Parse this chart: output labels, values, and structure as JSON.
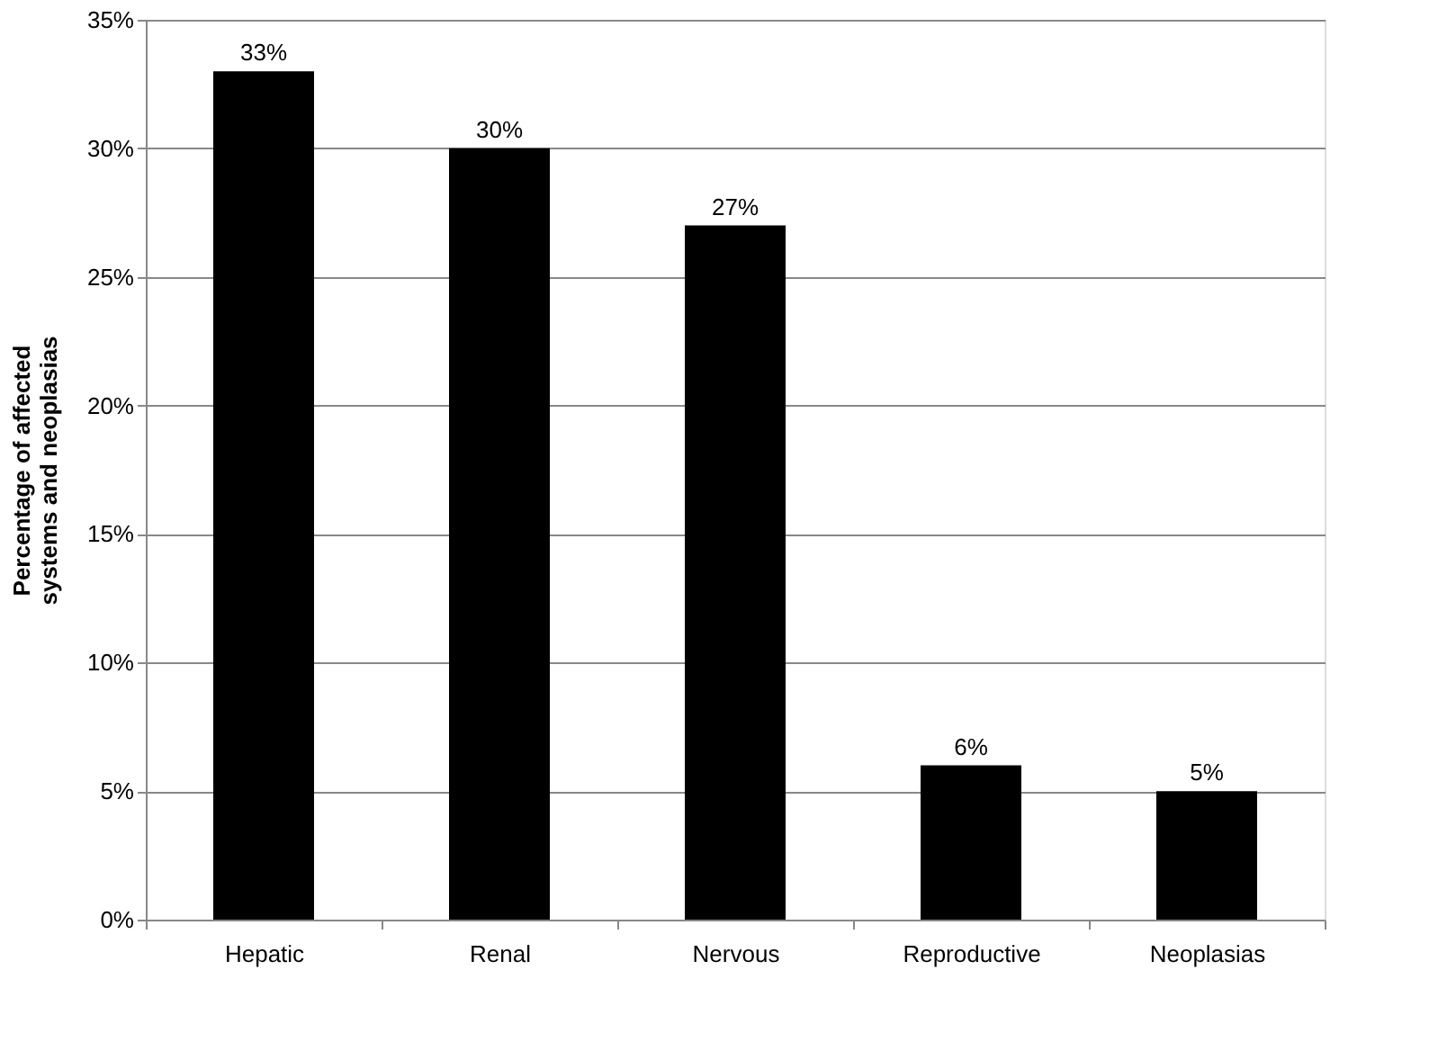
{
  "chart_data": {
    "type": "bar",
    "ylabel": "Percentage of affected systems and neoplasias",
    "categories": [
      "Hepatic",
      "Renal",
      "Nervous",
      "Reproductive",
      "Neoplasias"
    ],
    "values": [
      33,
      30,
      27,
      6,
      5
    ],
    "color": "#000000",
    "value_labels": [
      "33%",
      "30%",
      "27%",
      "6%",
      "5%"
    ],
    "ylim": [
      0,
      35
    ],
    "yticks": [
      {
        "value": 0,
        "label": "0%"
      },
      {
        "value": 5,
        "label": "5%"
      },
      {
        "value": 10,
        "label": "10%"
      },
      {
        "value": 15,
        "label": "15%"
      },
      {
        "value": 20,
        "label": "20%"
      },
      {
        "value": 25,
        "label": "25%"
      },
      {
        "value": 30,
        "label": "30%"
      },
      {
        "value": 35,
        "label": "35%"
      }
    ],
    "grid": "y"
  }
}
